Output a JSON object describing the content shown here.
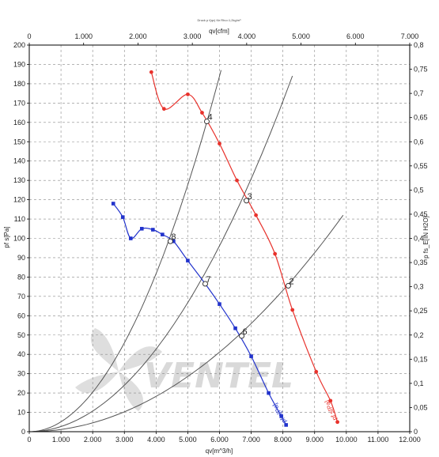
{
  "chart_data": {
    "type": "line",
    "header_note": "Druck p f(qv) für Rho=1,2kg/m³",
    "watermark": "VENTEL",
    "xlabel_bottom": "qv[m^3/h]",
    "xlabel_top": "qv[cfm]",
    "ylabel_left": "pf s[Pa]",
    "ylabel_right": "p fs_E[IN H2O]",
    "xlim": [
      0,
      12000
    ],
    "ylim": [
      0,
      200
    ],
    "x2lim": [
      0,
      7000
    ],
    "y2lim": [
      0,
      0.8
    ],
    "x_ticks": [
      0,
      1000,
      2000,
      3000,
      4000,
      5000,
      6000,
      7000,
      8000,
      9000,
      10000,
      11000,
      12000
    ],
    "x_tick_labels": [
      "0",
      "1.000",
      "2.000",
      "3.000",
      "4.000",
      "5.000",
      "6.000",
      "7.000",
      "8.000",
      "9.000",
      "10.000",
      "11.000",
      "12.000"
    ],
    "y_ticks": [
      0,
      10,
      20,
      30,
      40,
      50,
      60,
      70,
      80,
      90,
      100,
      110,
      120,
      130,
      140,
      150,
      160,
      170,
      180,
      190,
      200
    ],
    "y_tick_labels": [
      "0",
      "10",
      "20",
      "30",
      "40",
      "50",
      "60",
      "70",
      "80",
      "90",
      "100",
      "110",
      "120",
      "130",
      "140",
      "150",
      "160",
      "170",
      "180",
      "190",
      "200"
    ],
    "x2_ticks": [
      0,
      1000,
      2000,
      3000,
      4000,
      5000,
      6000,
      7000
    ],
    "x2_tick_labels": [
      "0",
      "1.000",
      "2.000",
      "3.000",
      "4.000",
      "5.000",
      "6.000",
      "7.000"
    ],
    "y2_ticks": [
      0,
      0.05,
      0.1,
      0.15,
      0.2,
      0.25,
      0.3,
      0.35,
      0.4,
      0.45,
      0.5,
      0.55,
      0.6,
      0.65,
      0.7,
      0.75,
      0.8
    ],
    "y2_tick_labels": [
      "0",
      "0,05",
      "0,1",
      "0,15",
      "0,2",
      "0,25",
      "0,3",
      "0,35",
      "0,4",
      "0,45",
      "0,5",
      "0,55",
      "0,6",
      "0,65",
      "0,7",
      "0,75",
      "0,8"
    ],
    "grid": true,
    "series": [
      {
        "name": "pf s[Pa]",
        "color": "#e8322c",
        "marker": "circle",
        "points": [
          [
            3850,
            186
          ],
          [
            4250,
            167
          ],
          [
            5000,
            174.5
          ],
          [
            5450,
            165
          ],
          [
            6000,
            149
          ],
          [
            6550,
            130
          ],
          [
            7150,
            112
          ],
          [
            7750,
            92
          ],
          [
            8300,
            63
          ],
          [
            9050,
            31
          ],
          [
            9500,
            16
          ],
          [
            9720,
            5
          ]
        ]
      },
      {
        "name": "pf s[Pa]",
        "color": "#2233cc",
        "marker": "square",
        "points": [
          [
            2650,
            118
          ],
          [
            2950,
            111
          ],
          [
            3200,
            100
          ],
          [
            3550,
            105
          ],
          [
            3900,
            104.5
          ],
          [
            4200,
            102
          ],
          [
            4550,
            98.5
          ],
          [
            5000,
            88.5
          ],
          [
            5550,
            76.5
          ],
          [
            6000,
            66
          ],
          [
            6500,
            53.5
          ],
          [
            7000,
            39
          ],
          [
            7550,
            20
          ],
          [
            7950,
            8
          ],
          [
            8100,
            3.5
          ]
        ]
      }
    ],
    "system_curves": [
      {
        "end": [
          6050,
          187
        ],
        "color": "#555555"
      },
      {
        "end": [
          8300,
          184
        ],
        "color": "#555555"
      },
      {
        "end": [
          9900,
          112
        ],
        "color": "#555555"
      }
    ],
    "point_labels": [
      {
        "label": "2",
        "x": 8170,
        "y": 75.5
      },
      {
        "label": "3",
        "x": 6850,
        "y": 119.5
      },
      {
        "label": "4",
        "x": 5600,
        "y": 160.5
      },
      {
        "label": "6",
        "x": 6700,
        "y": 49.5
      },
      {
        "label": "7",
        "x": 5550,
        "y": 76.5
      },
      {
        "label": "8",
        "x": 4450,
        "y": 98.5
      }
    ]
  }
}
